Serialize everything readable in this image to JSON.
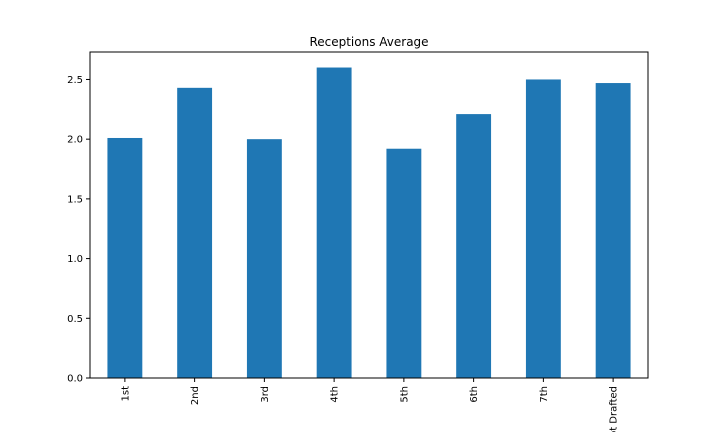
{
  "chart_data": {
    "type": "bar",
    "title": "Receptions Average",
    "xlabel": "",
    "ylabel": "",
    "categories": [
      "1st",
      "2nd",
      "3rd",
      "4th",
      "5th",
      "6th",
      "7th",
      "Not Drafted"
    ],
    "values": [
      2.01,
      2.43,
      2.0,
      2.6,
      1.92,
      2.21,
      2.5,
      2.47
    ],
    "ylim": [
      0,
      2.73
    ],
    "yticks": [
      0.0,
      0.5,
      1.0,
      1.5,
      2.0,
      2.5
    ],
    "ytick_labels": [
      "0.0",
      "0.5",
      "1.0",
      "1.5",
      "2.0",
      "2.5"
    ],
    "bar_color": "#1f77b4",
    "grid": false,
    "legend": "none"
  }
}
